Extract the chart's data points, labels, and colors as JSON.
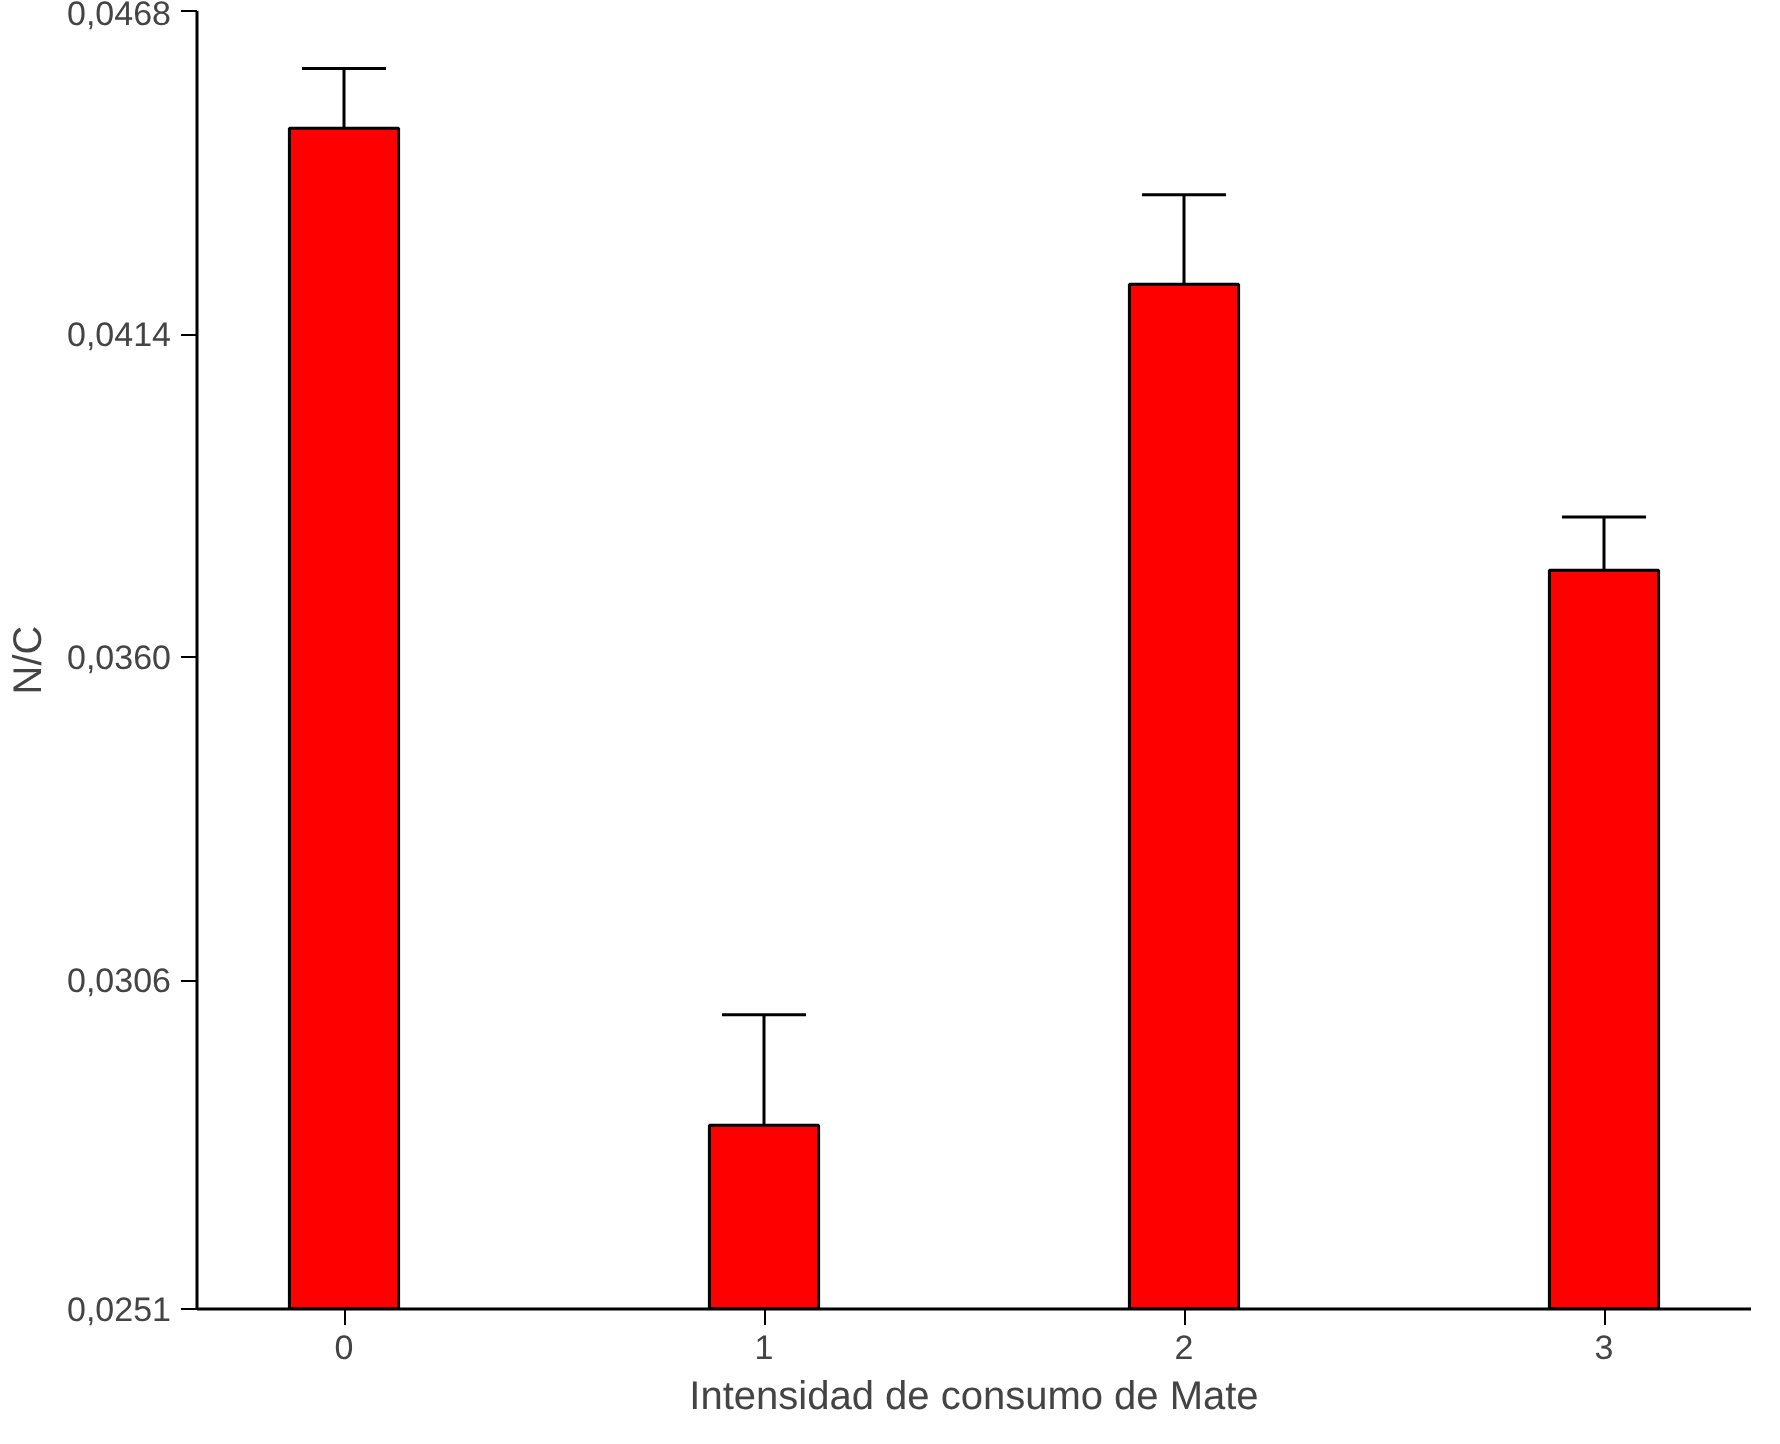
{
  "chart_data": {
    "type": "bar",
    "xlabel": "Intensidad de consumo de Mate",
    "ylabel": "N/C",
    "categories": [
      "0",
      "1",
      "2",
      "3"
    ],
    "values": [
      0.04484,
      0.02817,
      0.04223,
      0.03745
    ],
    "errors": [
      [
        0.04484,
        0.04584
      ],
      [
        0.02817,
        0.03002
      ],
      [
        0.04223,
        0.04373
      ],
      [
        0.03745,
        0.03834
      ]
    ],
    "color": "#ff0000",
    "ylim": [
      0.0251,
      0.0468
    ],
    "yticks": [
      {
        "value": 0.0251,
        "label": "0,0251"
      },
      {
        "value": 0.0306,
        "label": "0,0306"
      },
      {
        "value": 0.036,
        "label": "0,0360"
      },
      {
        "value": 0.0414,
        "label": "0,0414"
      },
      {
        "value": 0.0468,
        "label": "0,0468"
      }
    ],
    "grid": false
  }
}
